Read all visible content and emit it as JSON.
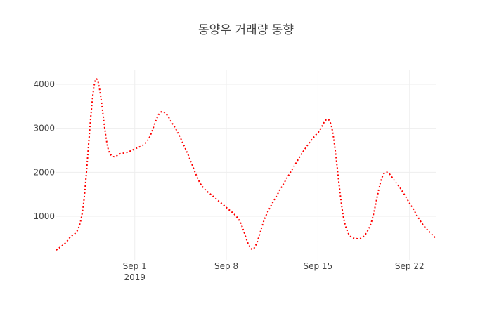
{
  "chart_data": {
    "type": "line",
    "title": "동양우 거래량 동향",
    "xlabel": "",
    "ylabel": "",
    "x_ticks": [
      {
        "date": "2019-09-01",
        "label": "Sep 1",
        "sublabel": "2019"
      },
      {
        "date": "2019-09-08",
        "label": "Sep 8",
        "sublabel": ""
      },
      {
        "date": "2019-09-15",
        "label": "Sep 15",
        "sublabel": ""
      },
      {
        "date": "2019-09-22",
        "label": "Sep 22",
        "sublabel": ""
      }
    ],
    "y_ticks": [
      1000,
      2000,
      3000,
      4000
    ],
    "xlim": [
      "2019-08-26",
      "2019-09-24"
    ],
    "ylim": [
      0,
      4300
    ],
    "grid": true,
    "series": [
      {
        "name": "",
        "color": "#ff0000",
        "points": [
          {
            "x": "2019-08-26",
            "y": 230
          },
          {
            "x": "2019-08-27",
            "y": 500
          },
          {
            "x": "2019-08-28",
            "y": 1100
          },
          {
            "x": "2019-08-29",
            "y": 4100
          },
          {
            "x": "2019-08-30",
            "y": 2500
          },
          {
            "x": "2019-08-31",
            "y": 2430
          },
          {
            "x": "2019-09-01",
            "y": 2530
          },
          {
            "x": "2019-09-02",
            "y": 2730
          },
          {
            "x": "2019-09-03",
            "y": 3370
          },
          {
            "x": "2019-09-04",
            "y": 3050
          },
          {
            "x": "2019-09-05",
            "y": 2450
          },
          {
            "x": "2019-09-06",
            "y": 1750
          },
          {
            "x": "2019-09-07",
            "y": 1450
          },
          {
            "x": "2019-09-08",
            "y": 1200
          },
          {
            "x": "2019-09-09",
            "y": 900
          },
          {
            "x": "2019-09-10",
            "y": 250
          },
          {
            "x": "2019-09-11",
            "y": 1000
          },
          {
            "x": "2019-09-12",
            "y": 1550
          },
          {
            "x": "2019-09-13",
            "y": 2050
          },
          {
            "x": "2019-09-14",
            "y": 2530
          },
          {
            "x": "2019-09-15",
            "y": 2900
          },
          {
            "x": "2019-09-16",
            "y": 3080
          },
          {
            "x": "2019-09-17",
            "y": 900
          },
          {
            "x": "2019-09-18",
            "y": 490
          },
          {
            "x": "2019-09-19",
            "y": 800
          },
          {
            "x": "2019-09-20",
            "y": 1950
          },
          {
            "x": "2019-09-21",
            "y": 1750
          },
          {
            "x": "2019-09-22",
            "y": 1300
          },
          {
            "x": "2019-09-23",
            "y": 820
          },
          {
            "x": "2019-09-24",
            "y": 500
          }
        ]
      }
    ]
  }
}
